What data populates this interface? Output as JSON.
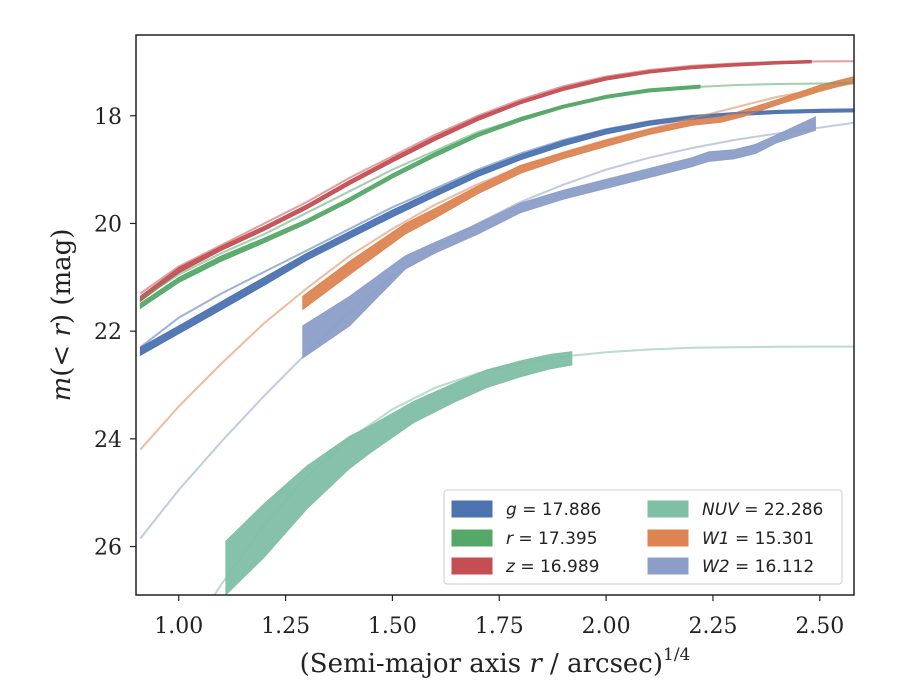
{
  "chart_data": {
    "type": "line",
    "xlabel": "(Semi-major axis r / arcsec)",
    "xlabel_prefix": "(Semi-major axis ",
    "xlabel_var": "r",
    "xlabel_suffix": " / arcsec)",
    "xlabel_exp": "1/4",
    "ylabel": "m(< r) (mag)",
    "ylabel_m": "m",
    "ylabel_mid": "(< ",
    "ylabel_r": "r",
    "ylabel_end": ") (mag)",
    "xlim": [
      0.9,
      2.58
    ],
    "ylim": [
      26.9,
      16.5
    ],
    "y_inverted": true,
    "x_ticks": [
      1.0,
      1.25,
      1.5,
      1.75,
      2.0,
      2.25,
      2.5
    ],
    "x_tick_labels": [
      "1.00",
      "1.25",
      "1.50",
      "1.75",
      "2.00",
      "2.25",
      "2.50"
    ],
    "y_ticks": [
      18,
      20,
      22,
      24,
      26
    ],
    "y_tick_labels": [
      "18",
      "20",
      "22",
      "24",
      "26"
    ],
    "grid": false,
    "legend_position": "lower-right",
    "legend_columns": 2,
    "series": [
      {
        "name": "g = 17.886",
        "legend_var": "g",
        "legend_value": "17.886",
        "color": "#4c72b0",
        "model": [
          [
            0.91,
            22.3
          ],
          [
            1.0,
            21.75
          ],
          [
            1.1,
            21.3
          ],
          [
            1.2,
            20.9
          ],
          [
            1.3,
            20.5
          ],
          [
            1.4,
            20.1
          ],
          [
            1.5,
            19.7
          ],
          [
            1.6,
            19.35
          ],
          [
            1.7,
            19.0
          ],
          [
            1.8,
            18.7
          ],
          [
            1.9,
            18.45
          ],
          [
            2.0,
            18.25
          ],
          [
            2.1,
            18.1
          ],
          [
            2.2,
            18.0
          ],
          [
            2.3,
            17.95
          ],
          [
            2.4,
            17.91
          ],
          [
            2.5,
            17.89
          ],
          [
            2.58,
            17.886
          ]
        ],
        "band": [
          [
            0.91,
            22.3,
            22.45
          ],
          [
            1.0,
            21.9,
            22.05
          ],
          [
            1.1,
            21.45,
            21.6
          ],
          [
            1.2,
            21.0,
            21.15
          ],
          [
            1.3,
            20.55,
            20.68
          ],
          [
            1.4,
            20.15,
            20.28
          ],
          [
            1.5,
            19.75,
            19.88
          ],
          [
            1.6,
            19.38,
            19.5
          ],
          [
            1.7,
            19.02,
            19.13
          ],
          [
            1.8,
            18.72,
            18.82
          ],
          [
            1.9,
            18.46,
            18.56
          ],
          [
            2.0,
            18.25,
            18.34
          ],
          [
            2.1,
            18.1,
            18.18
          ],
          [
            2.2,
            18.0,
            18.07
          ],
          [
            2.3,
            17.94,
            18.0
          ],
          [
            2.4,
            17.9,
            17.96
          ],
          [
            2.5,
            17.88,
            17.94
          ],
          [
            2.58,
            17.87,
            17.93
          ]
        ],
        "band_xmax": 2.58
      },
      {
        "name": "r = 17.395",
        "legend_var": "r",
        "legend_value": "17.395",
        "color": "#55a868",
        "model": [
          [
            0.91,
            21.4
          ],
          [
            1.0,
            20.95
          ],
          [
            1.1,
            20.55
          ],
          [
            1.2,
            20.2
          ],
          [
            1.3,
            19.8
          ],
          [
            1.4,
            19.4
          ],
          [
            1.5,
            19.0
          ],
          [
            1.6,
            18.65
          ],
          [
            1.7,
            18.3
          ],
          [
            1.8,
            18.05
          ],
          [
            1.9,
            17.82
          ],
          [
            2.0,
            17.65
          ],
          [
            2.1,
            17.54
          ],
          [
            2.2,
            17.47
          ],
          [
            2.3,
            17.43
          ],
          [
            2.4,
            17.41
          ],
          [
            2.5,
            17.4
          ],
          [
            2.58,
            17.395
          ]
        ],
        "band": [
          [
            0.91,
            21.48,
            21.58
          ],
          [
            1.0,
            21.0,
            21.1
          ],
          [
            1.1,
            20.6,
            20.7
          ],
          [
            1.2,
            20.27,
            20.36
          ],
          [
            1.3,
            19.92,
            20.0
          ],
          [
            1.4,
            19.52,
            19.6
          ],
          [
            1.5,
            19.08,
            19.16
          ],
          [
            1.6,
            18.68,
            18.76
          ],
          [
            1.7,
            18.32,
            18.39
          ],
          [
            1.8,
            18.03,
            18.1
          ],
          [
            1.9,
            17.8,
            17.86
          ],
          [
            2.0,
            17.62,
            17.68
          ],
          [
            2.1,
            17.5,
            17.56
          ],
          [
            2.22,
            17.43,
            17.49
          ]
        ],
        "band_xmax": 2.22
      },
      {
        "name": "z = 16.989",
        "legend_var": "z",
        "legend_value": "16.989",
        "color": "#c44e52",
        "model": [
          [
            0.91,
            21.3
          ],
          [
            1.0,
            20.8
          ],
          [
            1.1,
            20.4
          ],
          [
            1.2,
            20.0
          ],
          [
            1.3,
            19.6
          ],
          [
            1.4,
            19.15
          ],
          [
            1.5,
            18.75
          ],
          [
            1.6,
            18.35
          ],
          [
            1.7,
            18.0
          ],
          [
            1.8,
            17.7
          ],
          [
            1.9,
            17.45
          ],
          [
            2.0,
            17.27
          ],
          [
            2.1,
            17.15
          ],
          [
            2.2,
            17.07
          ],
          [
            2.3,
            17.03
          ],
          [
            2.4,
            17.0
          ],
          [
            2.5,
            16.99
          ],
          [
            2.58,
            16.989
          ]
        ],
        "band": [
          [
            0.91,
            21.35,
            21.45
          ],
          [
            1.0,
            20.82,
            20.92
          ],
          [
            1.1,
            20.42,
            20.5
          ],
          [
            1.2,
            20.05,
            20.13
          ],
          [
            1.3,
            19.65,
            19.73
          ],
          [
            1.4,
            19.2,
            19.28
          ],
          [
            1.5,
            18.78,
            18.86
          ],
          [
            1.6,
            18.38,
            18.46
          ],
          [
            1.7,
            18.02,
            18.09
          ],
          [
            1.8,
            17.72,
            17.78
          ],
          [
            1.9,
            17.47,
            17.53
          ],
          [
            2.0,
            17.28,
            17.34
          ],
          [
            2.1,
            17.16,
            17.21
          ],
          [
            2.2,
            17.08,
            17.13
          ],
          [
            2.3,
            17.03,
            17.08
          ],
          [
            2.4,
            16.99,
            17.04
          ],
          [
            2.48,
            16.97,
            17.02
          ]
        ],
        "band_xmax": 2.48
      },
      {
        "name": "NUV = 22.286",
        "legend_var": "NUV",
        "legend_value": "22.286",
        "color": "#7fbfa6",
        "model": [
          [
            0.91,
            29.0
          ],
          [
            1.0,
            27.9
          ],
          [
            1.1,
            26.7
          ],
          [
            1.2,
            25.6
          ],
          [
            1.3,
            24.7
          ],
          [
            1.4,
            24.0
          ],
          [
            1.5,
            23.45
          ],
          [
            1.6,
            23.05
          ],
          [
            1.7,
            22.78
          ],
          [
            1.8,
            22.6
          ],
          [
            1.9,
            22.47
          ],
          [
            2.0,
            22.39
          ],
          [
            2.1,
            22.34
          ],
          [
            2.2,
            22.31
          ],
          [
            2.3,
            22.3
          ],
          [
            2.4,
            22.29
          ],
          [
            2.5,
            22.287
          ],
          [
            2.58,
            22.286
          ]
        ],
        "band": [
          [
            1.11,
            25.9,
            26.9
          ],
          [
            1.2,
            25.2,
            26.2
          ],
          [
            1.3,
            24.5,
            25.3
          ],
          [
            1.4,
            23.95,
            24.55
          ],
          [
            1.45,
            23.75,
            24.25
          ],
          [
            1.55,
            23.3,
            23.7
          ],
          [
            1.65,
            22.95,
            23.3
          ],
          [
            1.72,
            22.72,
            23.05
          ],
          [
            1.8,
            22.55,
            22.85
          ],
          [
            1.87,
            22.43,
            22.7
          ],
          [
            1.92,
            22.38,
            22.63
          ]
        ],
        "band_xmax": 1.92
      },
      {
        "name": "W1 = 15.301",
        "legend_var": "W1",
        "legend_value": "15.301",
        "color": "#dd8452",
        "model": [
          [
            0.91,
            24.2
          ],
          [
            1.0,
            23.4
          ],
          [
            1.1,
            22.6
          ],
          [
            1.2,
            21.85
          ],
          [
            1.3,
            21.2
          ],
          [
            1.4,
            20.6
          ],
          [
            1.5,
            20.1
          ],
          [
            1.6,
            19.65
          ],
          [
            1.7,
            19.27
          ],
          [
            1.8,
            18.95
          ],
          [
            1.9,
            18.68
          ],
          [
            2.0,
            18.45
          ],
          [
            2.1,
            18.25
          ],
          [
            2.2,
            18.05
          ],
          [
            2.3,
            17.85
          ],
          [
            2.4,
            17.65
          ],
          [
            2.5,
            17.5
          ],
          [
            2.58,
            17.4
          ]
        ],
        "band": [
          [
            1.29,
            21.35,
            21.6
          ],
          [
            1.4,
            20.7,
            20.95
          ],
          [
            1.53,
            20.0,
            20.2
          ],
          [
            1.6,
            19.72,
            19.9
          ],
          [
            1.7,
            19.3,
            19.45
          ],
          [
            1.8,
            18.92,
            19.07
          ],
          [
            1.9,
            18.68,
            18.8
          ],
          [
            2.0,
            18.45,
            18.57
          ],
          [
            2.1,
            18.25,
            18.35
          ],
          [
            2.2,
            18.08,
            18.18
          ],
          [
            2.27,
            18.02,
            18.12
          ],
          [
            2.32,
            17.9,
            18.02
          ],
          [
            2.4,
            17.7,
            17.8
          ],
          [
            2.5,
            17.43,
            17.55
          ],
          [
            2.58,
            17.27,
            17.38
          ]
        ],
        "band_xmax": 2.58
      },
      {
        "name": "W2 = 16.112",
        "legend_var": "W2",
        "legend_value": "16.112",
        "color": "#8c9ec8",
        "model": [
          [
            0.91,
            25.85
          ],
          [
            1.0,
            24.95
          ],
          [
            1.1,
            24.05
          ],
          [
            1.2,
            23.2
          ],
          [
            1.3,
            22.4
          ],
          [
            1.4,
            21.65
          ],
          [
            1.5,
            21.0
          ],
          [
            1.6,
            20.45
          ],
          [
            1.7,
            20.0
          ],
          [
            1.8,
            19.6
          ],
          [
            1.9,
            19.28
          ],
          [
            2.0,
            19.0
          ],
          [
            2.1,
            18.78
          ],
          [
            2.2,
            18.6
          ],
          [
            2.3,
            18.45
          ],
          [
            2.4,
            18.33
          ],
          [
            2.5,
            18.22
          ],
          [
            2.58,
            18.13
          ]
        ],
        "band": [
          [
            1.29,
            21.9,
            22.5
          ],
          [
            1.4,
            21.35,
            21.9
          ],
          [
            1.53,
            20.6,
            20.85
          ],
          [
            1.6,
            20.35,
            20.55
          ],
          [
            1.7,
            20.0,
            20.2
          ],
          [
            1.8,
            19.62,
            19.8
          ],
          [
            1.9,
            19.38,
            19.55
          ],
          [
            2.0,
            19.18,
            19.35
          ],
          [
            2.1,
            18.98,
            19.15
          ],
          [
            2.2,
            18.78,
            18.95
          ],
          [
            2.24,
            18.67,
            18.85
          ],
          [
            2.3,
            18.63,
            18.8
          ],
          [
            2.35,
            18.53,
            18.7
          ],
          [
            2.4,
            18.35,
            18.5
          ],
          [
            2.49,
            18.02,
            18.27
          ]
        ],
        "band_xmax": 2.49
      }
    ]
  }
}
